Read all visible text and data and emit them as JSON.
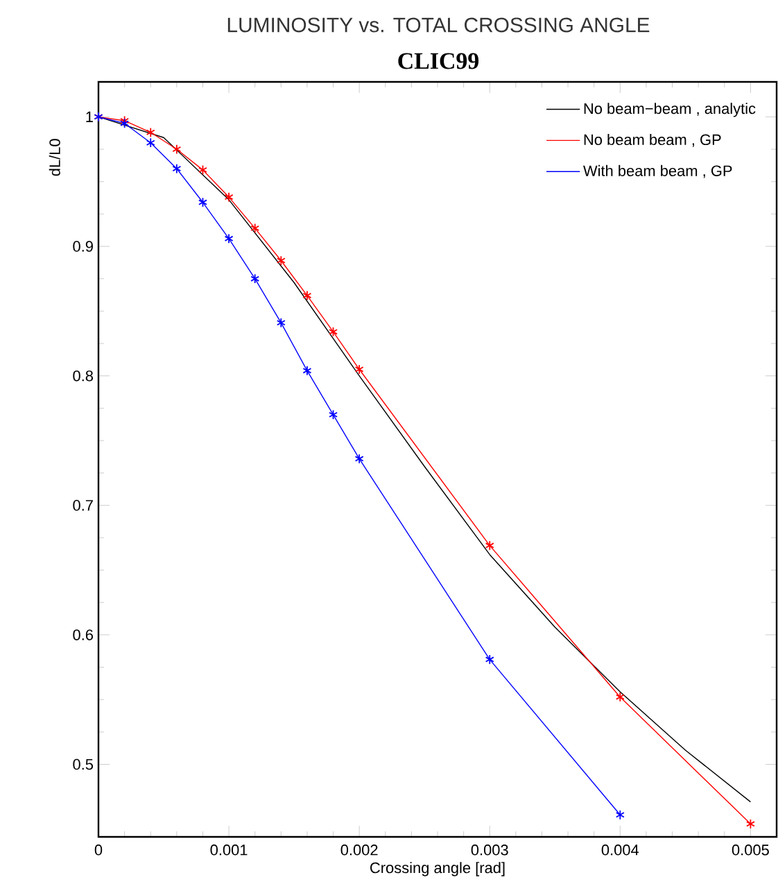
{
  "chart_data": {
    "type": "line",
    "title": "LUMINOSITY vs. TOTAL CROSSING ANGLE",
    "subtitle": "**CLIC99**",
    "xlabel": "Crossing angle [rad]",
    "ylabel": "dL/L0",
    "xlim": [
      0,
      0.0052
    ],
    "ylim": [
      0.444,
      1.027
    ],
    "xticks": [
      0,
      0.001,
      0.002,
      0.003,
      0.004,
      0.005
    ],
    "yticks": [
      0.5,
      0.6,
      0.7,
      0.8,
      0.9,
      1
    ],
    "marker": "cross",
    "legend": "top right",
    "series": [
      {
        "name": "No beam−beam , analytic",
        "color": "#000000",
        "marker": "none",
        "x": [
          0,
          0.0005,
          0.001,
          0.0015,
          0.002,
          0.0025,
          0.003,
          0.0035,
          0.004,
          0.0045,
          0.005
        ],
        "values": [
          1,
          0.984,
          0.936,
          0.872,
          0.8,
          0.73,
          0.662,
          0.606,
          0.556,
          0.511,
          0.471
        ]
      },
      {
        "name": "No beam beam , GP",
        "color": "#ff0000",
        "x": [
          0,
          0.0002,
          0.0004,
          0.0006,
          0.0008,
          0.001,
          0.0012,
          0.0014,
          0.0016,
          0.0018,
          0.002,
          0.003,
          0.004,
          0.005
        ],
        "values": [
          1,
          0.997,
          0.988,
          0.975,
          0.959,
          0.938,
          0.914,
          0.889,
          0.862,
          0.834,
          0.805,
          0.669,
          0.552,
          0.454
        ]
      },
      {
        "name": "With beam beam , GP",
        "color": "#0000ff",
        "x": [
          0,
          0.0002,
          0.0004,
          0.0006,
          0.0008,
          0.001,
          0.0012,
          0.0014,
          0.0016,
          0.0018,
          0.002,
          0.003,
          0.004
        ],
        "values": [
          1,
          0.995,
          0.98,
          0.96,
          0.934,
          0.906,
          0.875,
          0.841,
          0.804,
          0.77,
          0.736,
          0.581,
          0.461
        ]
      }
    ]
  }
}
